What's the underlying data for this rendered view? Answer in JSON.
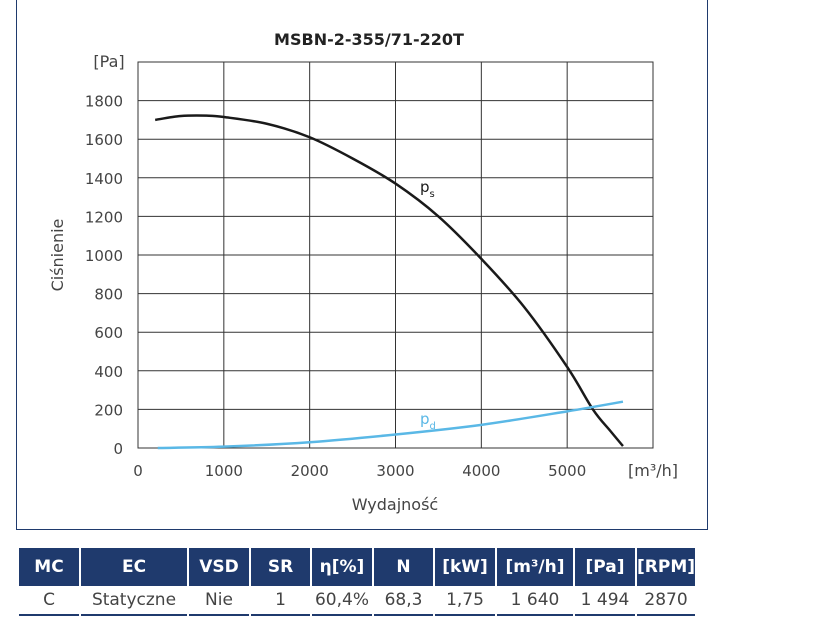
{
  "chart_data": {
    "type": "line",
    "title": "MSBN-2-355/71-220T",
    "xlabel": "Wydajność",
    "ylabel": "Ciśnienie",
    "x_unit_label": "[m³/h]",
    "y_unit_label": "[Pa]",
    "xlim": [
      0,
      6000
    ],
    "ylim": [
      0,
      2000
    ],
    "x_ticks": [
      "0",
      "1000",
      "2000",
      "3000",
      "4000",
      "5000"
    ],
    "y_ticks": [
      "0",
      "200",
      "400",
      "600",
      "800",
      "1000",
      "1200",
      "1400",
      "1600",
      "1800"
    ],
    "grid": true,
    "series": [
      {
        "name": "ps",
        "label_main": "p",
        "label_sub": "s",
        "color": "#1a1a1a",
        "x": [
          200,
          500,
          800,
          1000,
          1500,
          2000,
          2500,
          3000,
          3500,
          4000,
          4500,
          5000,
          5300,
          5500,
          5650
        ],
        "y": [
          1700,
          1720,
          1722,
          1715,
          1680,
          1610,
          1500,
          1370,
          1200,
          980,
          730,
          420,
          200,
          90,
          10
        ]
      },
      {
        "name": "pd",
        "label_main": "p",
        "label_sub": "d",
        "color": "#5ab8e6",
        "x": [
          230,
          1000,
          2000,
          3000,
          4000,
          5000,
          5650
        ],
        "y": [
          0,
          7,
          30,
          70,
          120,
          190,
          240
        ]
      }
    ]
  },
  "table": {
    "headers": [
      "MC",
      "EC",
      "VSD",
      "SR",
      "η[%]",
      "N",
      "[kW]",
      "[m³/h]",
      "[Pa]",
      "[RPM]"
    ],
    "row": [
      "C",
      "Statyczne",
      "Nie",
      "1",
      "60,4%",
      "68,3",
      "1,75",
      "1 640",
      "1 494",
      "2870"
    ]
  },
  "colors": {
    "frame": "#1f3a6d",
    "grid": "#333333",
    "header_bg": "#1f3a6d"
  }
}
